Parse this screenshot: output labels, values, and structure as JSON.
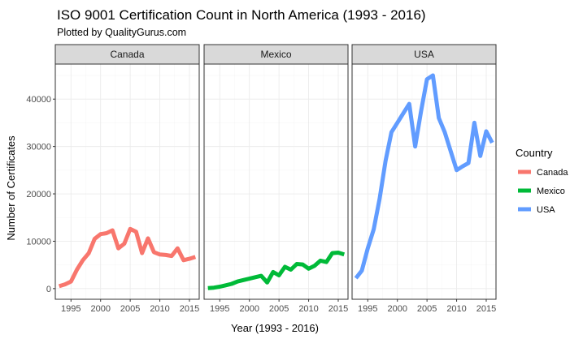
{
  "chart_data": {
    "type": "line",
    "title": "ISO 9001 Certification Count in North America (1993 - 2016)",
    "subtitle": "Plotted by QualityGurus.com",
    "xlabel": "Year (1993 - 2016)",
    "ylabel": "Number of Certificates",
    "xlim": [
      1992.35,
      2016.65
    ],
    "ylim": [
      -2250,
      47400
    ],
    "x_ticks": [
      1995,
      2000,
      2005,
      2010,
      2015
    ],
    "y_ticks": [
      0,
      10000,
      20000,
      30000,
      40000
    ],
    "y_tick_labels": [
      "0",
      "10000",
      "20000",
      "30000",
      "40000"
    ],
    "grid": true,
    "legend": {
      "title": "Country",
      "position": "right"
    },
    "x": [
      1993,
      1994,
      1995,
      1996,
      1997,
      1998,
      1999,
      2000,
      2001,
      2002,
      2003,
      2004,
      2005,
      2006,
      2007,
      2008,
      2009,
      2010,
      2011,
      2012,
      2013,
      2014,
      2015,
      2016
    ],
    "series": [
      {
        "name": "Canada",
        "color": "#F8766D",
        "panel": "Canada",
        "values": [
          500,
          900,
          1500,
          4000,
          6000,
          7500,
          10500,
          11500,
          11700,
          12300,
          8500,
          9500,
          12600,
          12000,
          7500,
          10600,
          7700,
          7200,
          7100,
          6900,
          8500,
          6000,
          6300,
          6700
        ]
      },
      {
        "name": "Mexico",
        "color": "#00BA38",
        "panel": "Mexico",
        "values": [
          100,
          200,
          400,
          700,
          1000,
          1500,
          1800,
          2100,
          2400,
          2700,
          1300,
          3500,
          2800,
          4600,
          4000,
          5200,
          5100,
          4200,
          4800,
          5900,
          5600,
          7500,
          7600,
          7200
        ]
      },
      {
        "name": "USA",
        "color": "#619CFF",
        "panel": "USA",
        "values": [
          2200,
          3800,
          8500,
          12500,
          19000,
          27000,
          33000,
          35000,
          37000,
          39000,
          30000,
          37500,
          44200,
          45000,
          36000,
          33000,
          29000,
          25000,
          25800,
          26500,
          35000,
          28000,
          33200,
          30800
        ]
      }
    ]
  }
}
